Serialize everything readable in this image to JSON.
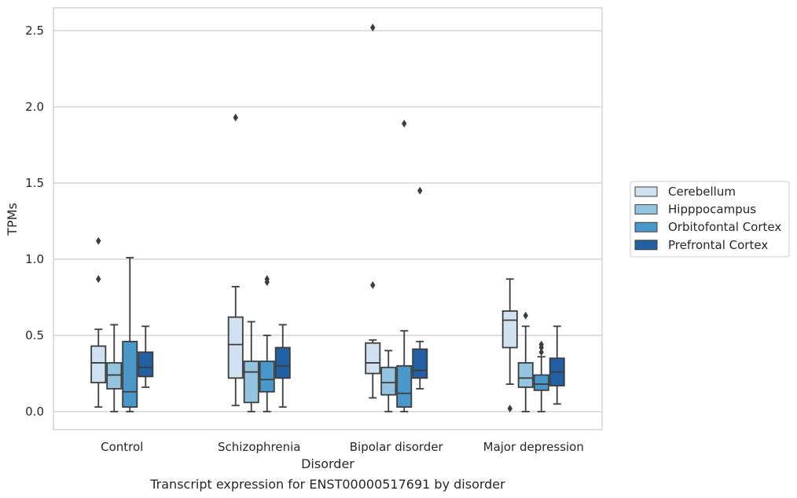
{
  "chart_data": {
    "type": "box",
    "title": "Transcript expression for ENST00000517691 by disorder",
    "xlabel": "Disorder",
    "ylabel": "TPMs",
    "ylim": [
      -0.12,
      2.65
    ],
    "yticks": [
      "0.0",
      "0.5",
      "1.0",
      "1.5",
      "2.0",
      "2.5"
    ],
    "grid": "horizontal",
    "legend_position": "right",
    "categories": [
      "Control",
      "Schizophrenia",
      "Bipolar disorder",
      "Major depression"
    ],
    "series": [
      {
        "name": "Cerebellum",
        "color": "#d0e1f2",
        "boxes": [
          {
            "whislo": 0.03,
            "q1": 0.19,
            "med": 0.32,
            "q3": 0.43,
            "whishi": 0.54,
            "fliers": [
              0.87,
              1.12
            ]
          },
          {
            "whislo": 0.04,
            "q1": 0.22,
            "med": 0.44,
            "q3": 0.62,
            "whishi": 0.82,
            "fliers": [
              1.93
            ]
          },
          {
            "whislo": 0.09,
            "q1": 0.25,
            "med": 0.32,
            "q3": 0.45,
            "whishi": 0.47,
            "fliers": [
              0.83,
              2.52
            ]
          },
          {
            "whislo": 0.18,
            "q1": 0.42,
            "med": 0.6,
            "q3": 0.66,
            "whishi": 0.87,
            "fliers": [
              0.02
            ]
          }
        ]
      },
      {
        "name": "Hipppocampus",
        "color": "#94c4df",
        "boxes": [
          {
            "whislo": 0.0,
            "q1": 0.15,
            "med": 0.24,
            "q3": 0.32,
            "whishi": 0.57,
            "fliers": []
          },
          {
            "whislo": 0.0,
            "q1": 0.06,
            "med": 0.26,
            "q3": 0.33,
            "whishi": 0.59,
            "fliers": []
          },
          {
            "whislo": 0.0,
            "q1": 0.11,
            "med": 0.19,
            "q3": 0.29,
            "whishi": 0.4,
            "fliers": []
          },
          {
            "whislo": 0.0,
            "q1": 0.16,
            "med": 0.22,
            "q3": 0.32,
            "whishi": 0.56,
            "fliers": [
              0.63
            ]
          }
        ]
      },
      {
        "name": "Orbitofontal Cortex",
        "color": "#4a98c9",
        "boxes": [
          {
            "whislo": 0.0,
            "q1": 0.03,
            "med": 0.13,
            "q3": 0.46,
            "whishi": 1.01,
            "fliers": []
          },
          {
            "whislo": 0.0,
            "q1": 0.13,
            "med": 0.21,
            "q3": 0.33,
            "whishi": 0.5,
            "fliers": [
              0.85,
              0.87
            ]
          },
          {
            "whislo": 0.0,
            "q1": 0.03,
            "med": 0.12,
            "q3": 0.3,
            "whishi": 0.53,
            "fliers": [
              1.89
            ]
          },
          {
            "whislo": 0.0,
            "q1": 0.14,
            "med": 0.18,
            "q3": 0.24,
            "whishi": 0.36,
            "fliers": [
              0.39,
              0.42,
              0.44
            ]
          }
        ]
      },
      {
        "name": "Prefrontal Cortex",
        "color": "#2260a4",
        "boxes": [
          {
            "whislo": 0.16,
            "q1": 0.23,
            "med": 0.29,
            "q3": 0.39,
            "whishi": 0.56,
            "fliers": []
          },
          {
            "whislo": 0.03,
            "q1": 0.22,
            "med": 0.3,
            "q3": 0.42,
            "whishi": 0.57,
            "fliers": []
          },
          {
            "whislo": 0.15,
            "q1": 0.22,
            "med": 0.27,
            "q3": 0.41,
            "whishi": 0.46,
            "fliers": [
              1.45
            ]
          },
          {
            "whislo": 0.05,
            "q1": 0.17,
            "med": 0.26,
            "q3": 0.35,
            "whishi": 0.56,
            "fliers": []
          }
        ]
      }
    ]
  }
}
